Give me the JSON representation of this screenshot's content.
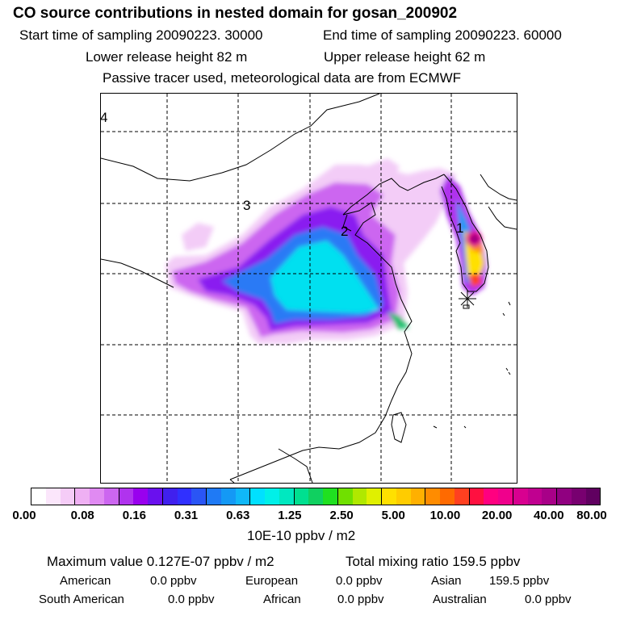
{
  "title": "CO  source contributions in nested domain for gosan_200902",
  "header": {
    "start_time": "Start time of sampling 20090223. 30000",
    "end_time": "End time of sampling 20090223. 60000",
    "lower_height": "Lower release height   82 m",
    "upper_height": "Upper release height   62 m",
    "tracer_note": "Passive tracer used, meteorological data are from ECMWF"
  },
  "map": {
    "region_labels": [
      "4",
      "3",
      "2",
      "1"
    ],
    "receptor_marker": "asterisk-icon"
  },
  "colorbar": {
    "tick_labels": [
      "0.00",
      "0.08",
      "0.16",
      "0.31",
      "0.63",
      "1.25",
      "2.50",
      "5.00",
      "10.00",
      "20.00",
      "40.00",
      "80.00"
    ],
    "colors": [
      "#ffffff",
      "#fbe6fb",
      "#f5ccf7",
      "#efb0f3",
      "#e08af2",
      "#cc66f0",
      "#b033ee",
      "#9900ee",
      "#6a10ee",
      "#4020ee",
      "#3030ff",
      "#2a55f5",
      "#1f7af5",
      "#1499f5",
      "#10b8f8",
      "#00e0ff",
      "#00f0e8",
      "#00e8c0",
      "#00e090",
      "#10d060",
      "#20e020",
      "#70e000",
      "#b0e800",
      "#e0f000",
      "#ffe000",
      "#ffcc00",
      "#ffb000",
      "#ff8c00",
      "#ff6a00",
      "#ff4020",
      "#ff1040",
      "#ff0080",
      "#f0008c",
      "#d80090",
      "#c00090",
      "#a80088",
      "#900080",
      "#780070",
      "#600060"
    ],
    "units": "10E-10 ppbv / m2"
  },
  "stats": {
    "max_value": "Maximum value  0.127E-07 ppbv / m2",
    "total_mixing": "Total mixing ratio      159.5 ppbv"
  },
  "regions": {
    "american": {
      "label": "American",
      "value": "0.0 ppbv"
    },
    "european": {
      "label": "European",
      "value": "0.0 ppbv"
    },
    "asian": {
      "label": "Asian",
      "value": "159.5 ppbv"
    },
    "south_american": {
      "label": "South American",
      "value": "0.0 ppbv"
    },
    "african": {
      "label": "African",
      "value": "0.0 ppbv"
    },
    "australian": {
      "label": "Australian",
      "value": "0.0 ppbv"
    }
  }
}
